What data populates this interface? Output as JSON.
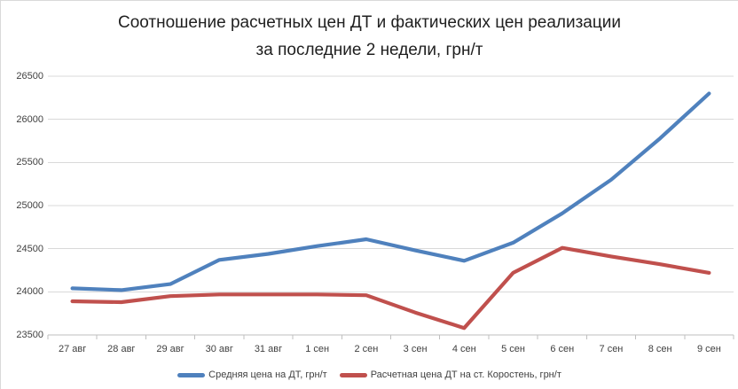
{
  "title": {
    "line1": "Соотношение расчетных цен ДТ и фактических цен реализации",
    "line2": "за последние 2 недели, грн/т"
  },
  "chart_data": {
    "type": "line",
    "categories": [
      "27 авг",
      "28 авг",
      "29 авг",
      "30 авг",
      "31 авг",
      "1 сен",
      "2 сен",
      "3 сен",
      "4 сен",
      "5 сен",
      "6 сен",
      "7 сен",
      "8 сен",
      "9 сен"
    ],
    "series": [
      {
        "name": "Средняя цена на ДТ, грн/т",
        "color": "#4F81BD",
        "values": [
          24040,
          24020,
          24090,
          24370,
          24440,
          24530,
          24610,
          24480,
          24360,
          24570,
          24910,
          25300,
          25780,
          26300
        ]
      },
      {
        "name": "Расчетная цена ДТ на ст. Коростень, грн/т",
        "color": "#C0504D",
        "values": [
          23890,
          23880,
          23950,
          23970,
          23970,
          23970,
          23960,
          23760,
          23580,
          24220,
          24510,
          24410,
          24320,
          24220
        ]
      }
    ],
    "ylim": [
      23500,
      26500
    ],
    "yticks": [
      23500,
      24000,
      24500,
      25000,
      25500,
      26000,
      26500
    ],
    "xlabel": "",
    "ylabel": "",
    "grid": true,
    "legend_position": "bottom",
    "colors": {
      "gridline": "#d9d9d9",
      "axis_line": "#bfbfbf",
      "tick": "#bfbfbf",
      "label_text": "#404040",
      "title_text": "#1f1f1f",
      "background": "#ffffff"
    }
  }
}
